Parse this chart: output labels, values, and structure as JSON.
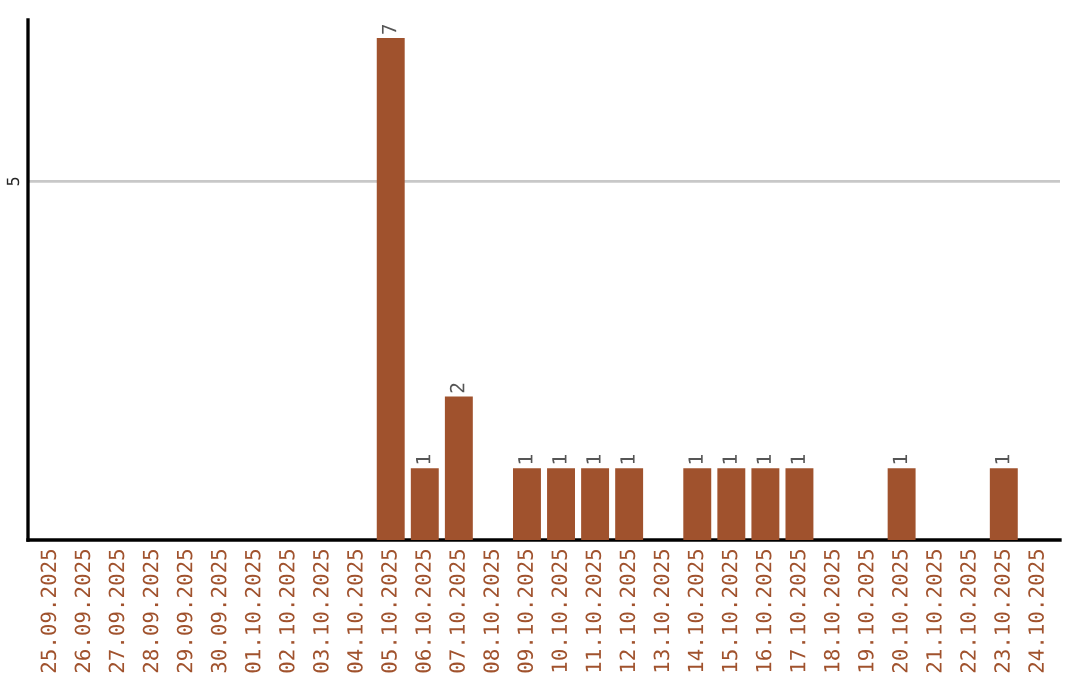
{
  "chart_data": {
    "type": "bar",
    "categories": [
      "25.09.2025",
      "26.09.2025",
      "27.09.2025",
      "28.09.2025",
      "29.09.2025",
      "30.09.2025",
      "01.10.2025",
      "02.10.2025",
      "03.10.2025",
      "04.10.2025",
      "05.10.2025",
      "06.10.2025",
      "07.10.2025",
      "08.10.2025",
      "09.10.2025",
      "10.10.2025",
      "11.10.2025",
      "12.10.2025",
      "13.10.2025",
      "14.10.2025",
      "15.10.2025",
      "16.10.2025",
      "17.10.2025",
      "18.10.2025",
      "19.10.2025",
      "20.10.2025",
      "21.10.2025",
      "22.10.2025",
      "23.10.2025",
      "24.10.2025"
    ],
    "values": [
      0,
      0,
      0,
      0,
      0,
      0,
      0,
      0,
      0,
      0,
      7,
      1,
      2,
      0,
      1,
      1,
      1,
      1,
      0,
      1,
      1,
      1,
      1,
      0,
      0,
      1,
      0,
      0,
      1,
      0
    ],
    "value_labels": [
      null,
      null,
      null,
      null,
      null,
      null,
      null,
      null,
      null,
      null,
      "7",
      "1",
      "2",
      null,
      "1",
      "1",
      "1",
      "1",
      null,
      "1",
      "1",
      "1",
      "1",
      null,
      null,
      "1",
      null,
      null,
      "1",
      null
    ],
    "color": "#a0522d",
    "ylim": [
      0,
      7.25
    ],
    "yticks": [
      5
    ],
    "grid": "y"
  }
}
